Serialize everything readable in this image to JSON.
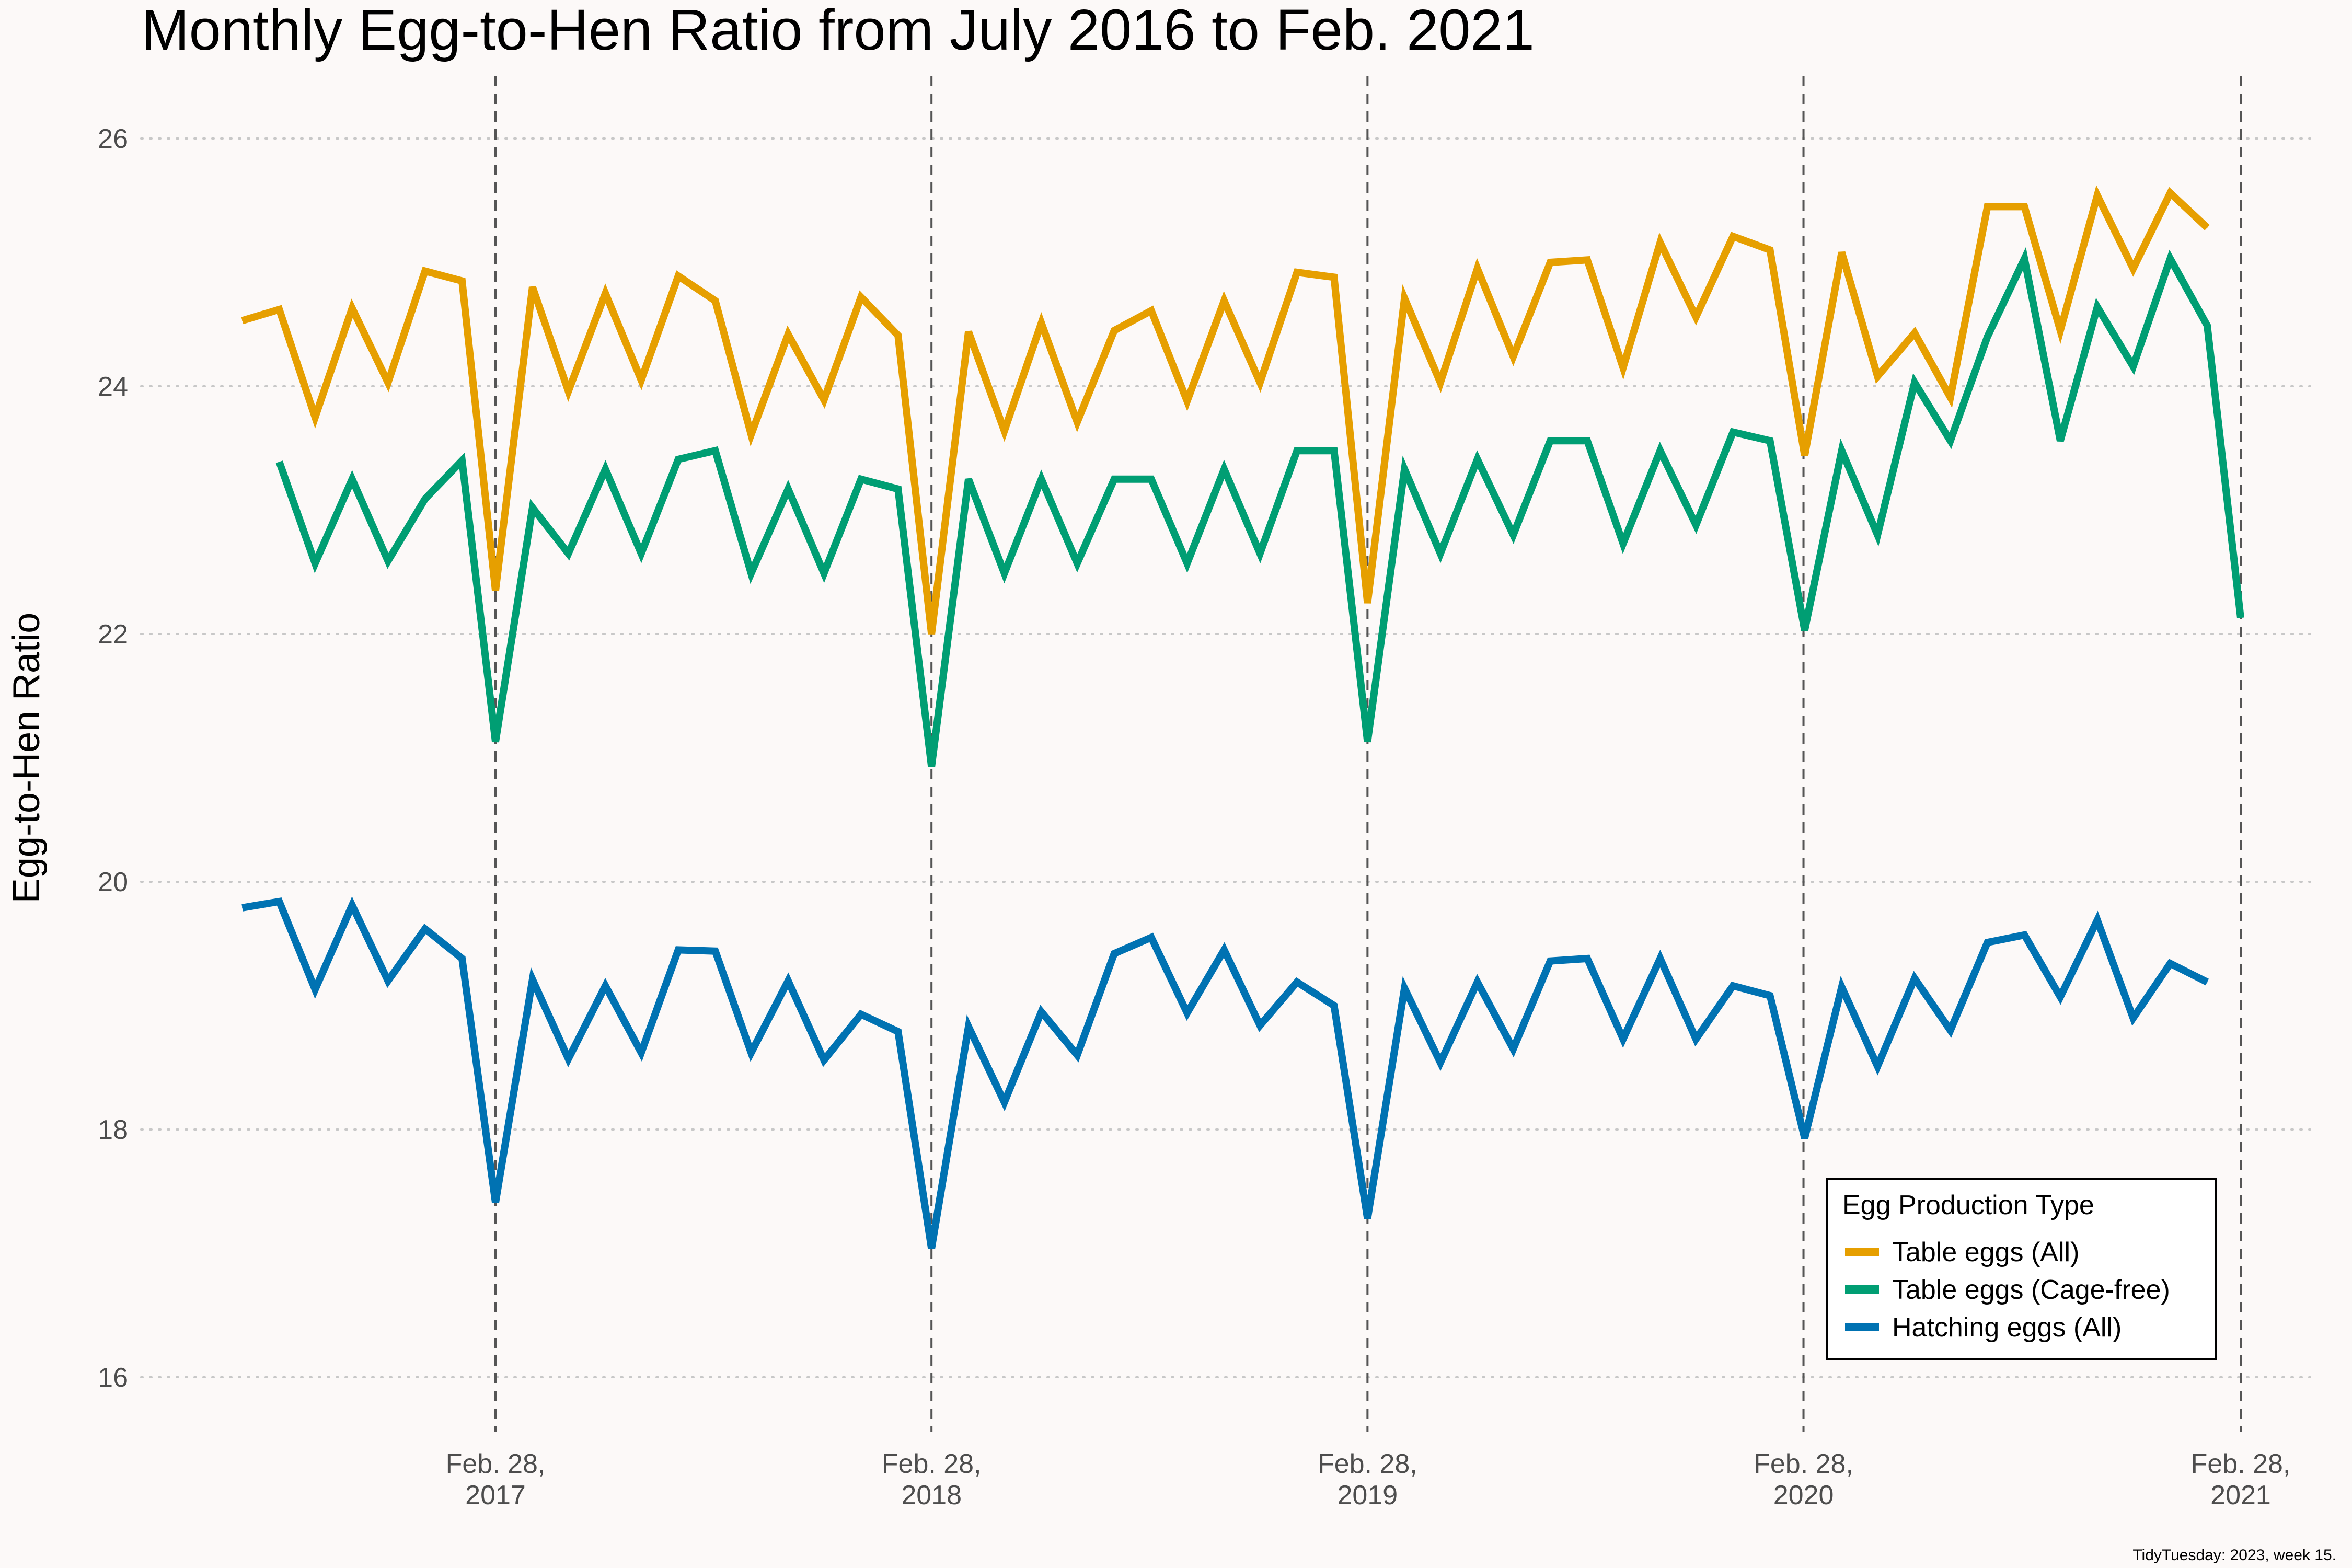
{
  "chart_data": {
    "type": "line",
    "title": "Monthly Egg-to-Hen Ratio from July 2016 to Feb. 2021",
    "xlabel": "",
    "ylabel": "Egg-to-Hen Ratio",
    "ylim": [
      15.5,
      26.5
    ],
    "yticks": [
      16,
      18,
      20,
      22,
      24,
      26
    ],
    "xlim": [
      "2016-07-01",
      "2021-03-31"
    ],
    "xticks": [
      {
        "date": "2017-02-28",
        "label": "Feb. 28,\n2017"
      },
      {
        "date": "2018-02-28",
        "label": "Feb. 28,\n2018"
      },
      {
        "date": "2019-02-28",
        "label": "Feb. 28,\n2019"
      },
      {
        "date": "2020-02-28",
        "label": "Feb. 28,\n2020"
      },
      {
        "date": "2021-02-28",
        "label": "Feb. 28,\n2021"
      }
    ],
    "grid": {
      "horizontal": "dotted",
      "vertical": "dashed at x ticks"
    },
    "legend": {
      "title": "Egg Production Type",
      "position": "bottom-right"
    },
    "caption": "TidyTuesday: 2023, week 15.",
    "series": [
      {
        "name": "Table eggs (All)",
        "color": "#E69F00",
        "x": [
          "2016-07-31",
          "2016-08-31",
          "2016-09-30",
          "2016-10-31",
          "2016-11-30",
          "2016-12-31",
          "2017-01-31",
          "2017-02-28",
          "2017-03-31",
          "2017-04-30",
          "2017-05-31",
          "2017-06-30",
          "2017-07-31",
          "2017-08-31",
          "2017-09-30",
          "2017-10-31",
          "2017-11-30",
          "2017-12-31",
          "2018-01-31",
          "2018-02-28",
          "2018-03-31",
          "2018-04-30",
          "2018-05-31",
          "2018-06-30",
          "2018-07-31",
          "2018-08-31",
          "2018-09-30",
          "2018-10-31",
          "2018-11-30",
          "2018-12-31",
          "2019-01-31",
          "2019-02-28",
          "2019-03-31",
          "2019-04-30",
          "2019-05-31",
          "2019-06-30",
          "2019-07-31",
          "2019-08-31",
          "2019-09-30",
          "2019-10-31",
          "2019-11-30",
          "2019-12-31",
          "2020-01-31",
          "2020-02-29",
          "2020-03-31",
          "2020-04-30",
          "2020-05-31",
          "2020-06-30",
          "2020-07-31",
          "2020-08-31",
          "2020-09-30",
          "2020-10-31",
          "2020-11-30",
          "2020-12-31",
          "2021-01-31"
        ],
        "values": [
          24.53,
          24.62,
          23.75,
          24.63,
          24.03,
          24.93,
          24.85,
          22.35,
          24.8,
          23.96,
          24.75,
          24.05,
          24.89,
          24.69,
          23.61,
          24.42,
          23.89,
          24.72,
          24.41,
          22.0,
          24.44,
          23.64,
          24.51,
          23.71,
          24.45,
          24.61,
          23.88,
          24.69,
          24.03,
          24.92,
          24.88,
          22.25,
          24.71,
          24.03,
          24.95,
          24.24,
          25.0,
          25.02,
          24.15,
          25.16,
          24.56,
          25.21,
          25.1,
          23.44,
          25.08,
          24.08,
          24.43,
          23.91,
          25.45,
          25.45,
          24.45,
          25.54,
          24.95,
          25.56,
          25.28
        ]
      },
      {
        "name": "Table eggs (Cage-free)",
        "color": "#009E73",
        "x": [
          "2016-08-31",
          "2016-09-30",
          "2016-10-31",
          "2016-11-30",
          "2016-12-31",
          "2017-01-31",
          "2017-02-28",
          "2017-03-31",
          "2017-04-30",
          "2017-05-31",
          "2017-06-30",
          "2017-07-31",
          "2017-08-31",
          "2017-09-30",
          "2017-10-31",
          "2017-11-30",
          "2017-12-31",
          "2018-01-31",
          "2018-02-28",
          "2018-03-31",
          "2018-04-30",
          "2018-05-31",
          "2018-06-30",
          "2018-07-31",
          "2018-08-31",
          "2018-09-30",
          "2018-10-31",
          "2018-11-30",
          "2018-12-31",
          "2019-01-31",
          "2019-02-28",
          "2019-03-31",
          "2019-04-30",
          "2019-05-31",
          "2019-06-30",
          "2019-07-31",
          "2019-08-31",
          "2019-09-30",
          "2019-10-31",
          "2019-11-30",
          "2019-12-31",
          "2020-01-31",
          "2020-02-29",
          "2020-03-31",
          "2020-04-30",
          "2020-05-31",
          "2020-06-30",
          "2020-07-31",
          "2020-08-31",
          "2020-09-30",
          "2020-10-31",
          "2020-11-30",
          "2020-12-31",
          "2021-01-31",
          "2021-02-28"
        ],
        "values": [
          23.39,
          22.57,
          23.25,
          22.59,
          23.09,
          23.4,
          21.13,
          23.02,
          22.65,
          23.33,
          22.65,
          23.41,
          23.48,
          22.49,
          23.17,
          22.49,
          23.25,
          23.17,
          20.93,
          23.25,
          22.49,
          23.25,
          22.57,
          23.25,
          23.25,
          22.57,
          23.33,
          22.65,
          23.48,
          23.48,
          21.13,
          23.33,
          22.65,
          23.41,
          22.8,
          23.56,
          23.56,
          22.73,
          23.48,
          22.88,
          23.63,
          23.56,
          22.03,
          23.48,
          22.8,
          24.03,
          23.56,
          24.4,
          25.03,
          23.56,
          24.64,
          24.16,
          25.03,
          24.49,
          22.13
        ]
      },
      {
        "name": "Hatching eggs (All)",
        "color": "#0072B2",
        "x": [
          "2016-07-31",
          "2016-08-31",
          "2016-09-30",
          "2016-10-31",
          "2016-11-30",
          "2016-12-31",
          "2017-01-31",
          "2017-02-28",
          "2017-03-31",
          "2017-04-30",
          "2017-05-31",
          "2017-06-30",
          "2017-07-31",
          "2017-08-31",
          "2017-09-30",
          "2017-10-31",
          "2017-11-30",
          "2017-12-31",
          "2018-01-31",
          "2018-02-28",
          "2018-03-31",
          "2018-04-30",
          "2018-05-31",
          "2018-06-30",
          "2018-07-31",
          "2018-08-31",
          "2018-09-30",
          "2018-10-31",
          "2018-11-30",
          "2018-12-31",
          "2019-01-31",
          "2019-02-28",
          "2019-03-31",
          "2019-04-30",
          "2019-05-31",
          "2019-06-30",
          "2019-07-31",
          "2019-08-31",
          "2019-09-30",
          "2019-10-31",
          "2019-11-30",
          "2019-12-31",
          "2020-01-31",
          "2020-02-29",
          "2020-03-31",
          "2020-04-30",
          "2020-05-31",
          "2020-06-30",
          "2020-07-31",
          "2020-08-31",
          "2020-09-30",
          "2020-10-31",
          "2020-11-30",
          "2020-12-31",
          "2021-01-31"
        ],
        "values": [
          19.79,
          19.84,
          19.13,
          19.81,
          19.2,
          19.62,
          19.38,
          17.41,
          19.21,
          18.57,
          19.16,
          18.62,
          19.45,
          19.44,
          18.62,
          19.2,
          18.56,
          18.93,
          18.79,
          17.04,
          18.83,
          18.22,
          18.95,
          18.6,
          19.42,
          19.55,
          18.94,
          19.45,
          18.84,
          19.19,
          19.0,
          17.28,
          19.14,
          18.54,
          19.19,
          18.65,
          19.36,
          19.38,
          18.73,
          19.38,
          18.73,
          19.16,
          19.08,
          17.93,
          19.15,
          18.51,
          19.22,
          18.8,
          19.51,
          19.57,
          19.07,
          19.69,
          18.9,
          19.34,
          19.19
        ]
      }
    ]
  }
}
